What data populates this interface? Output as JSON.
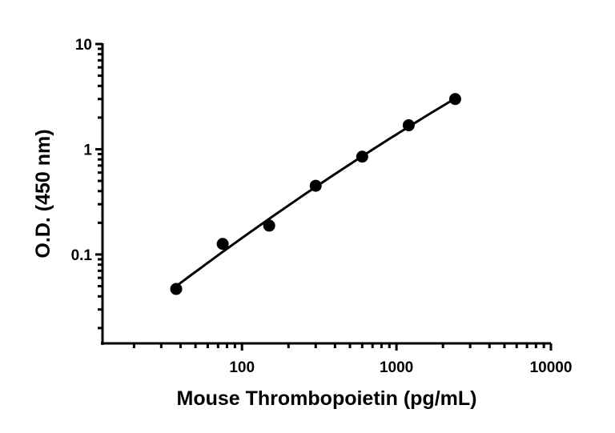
{
  "chart_data": {
    "type": "scatter",
    "title": "",
    "xlabel": "Mouse Thrombopoietin (pg/mL)",
    "ylabel": "O.D. (450 nm)",
    "x_scale": "log",
    "y_scale": "log",
    "xlim": [
      12.5,
      10000
    ],
    "ylim": [
      0.0143,
      10
    ],
    "x_ticks": [
      100,
      1000,
      10000
    ],
    "x_tick_labels": [
      "100",
      "1000",
      "10000"
    ],
    "y_ticks": [
      0.1,
      1,
      10
    ],
    "y_tick_labels": [
      "0.1",
      "1",
      "10"
    ],
    "grid": false,
    "legend": "none",
    "fit_line": true,
    "color": "#000000",
    "series": [
      {
        "x": [
          37.5,
          75,
          150,
          300,
          600,
          1200,
          2400
        ],
        "y": [
          0.047,
          0.126,
          0.188,
          0.45,
          0.85,
          1.69,
          3.0
        ]
      }
    ]
  }
}
